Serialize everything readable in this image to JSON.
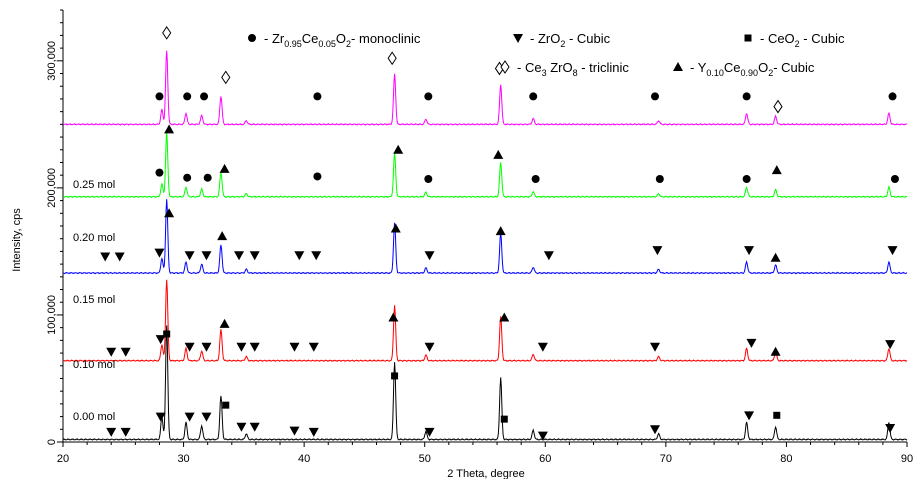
{
  "chart_data": {
    "type": "line",
    "xlabel": "2 Theta, degree",
    "ylabel": "Intensity, cps",
    "xlim": [
      20,
      90
    ],
    "ylim": [
      0,
      340000
    ],
    "x_ticks": [
      20,
      30,
      40,
      50,
      60,
      70,
      80,
      90
    ],
    "y_ticks": [
      0,
      100000,
      200000,
      300000
    ],
    "y_tick_labels": [
      "0",
      "100,000",
      "200,000",
      "300,000"
    ],
    "grid": false,
    "legend": [
      {
        "marker": "circle",
        "parts": [
          [
            "- Zr",
            ""
          ],
          [
            "0.95",
            "sub"
          ],
          [
            "Ce",
            ""
          ],
          [
            "0.05",
            "sub"
          ],
          [
            "O",
            ""
          ],
          [
            "2",
            "sub"
          ],
          [
            "- monoclinic",
            ""
          ]
        ]
      },
      {
        "marker": "triangle-down",
        "parts": [
          [
            "- ZrO",
            ""
          ],
          [
            "2",
            "sub"
          ],
          [
            " - Cubic",
            ""
          ]
        ]
      },
      {
        "marker": "square",
        "parts": [
          [
            "- CeO",
            ""
          ],
          [
            "2",
            "sub"
          ],
          [
            " - Cubic",
            ""
          ]
        ]
      },
      {
        "marker": "diamond",
        "parts": [
          [
            "- Ce",
            ""
          ],
          [
            "3",
            "sub"
          ],
          [
            " ZrO",
            ""
          ],
          [
            "8",
            "sub"
          ],
          [
            " - triclinic",
            ""
          ]
        ]
      },
      {
        "marker": "triangle-up",
        "parts": [
          [
            "- Y",
            ""
          ],
          [
            "0.10",
            "sub"
          ],
          [
            "Ce",
            ""
          ],
          [
            "0.90",
            "sub"
          ],
          [
            "O",
            ""
          ],
          [
            "2",
            "sub"
          ],
          [
            "- Cubic",
            ""
          ]
        ]
      }
    ],
    "peaks": [
      {
        "x": 28.6,
        "h": 1.0
      },
      {
        "x": 28.2,
        "h": 0.2
      },
      {
        "x": 30.2,
        "h": 0.15
      },
      {
        "x": 31.5,
        "h": 0.12
      },
      {
        "x": 33.1,
        "h": 0.38
      },
      {
        "x": 35.2,
        "h": 0.05
      },
      {
        "x": 47.5,
        "h": 0.68
      },
      {
        "x": 50.1,
        "h": 0.07
      },
      {
        "x": 56.3,
        "h": 0.54
      },
      {
        "x": 59.0,
        "h": 0.08
      },
      {
        "x": 69.4,
        "h": 0.05
      },
      {
        "x": 76.7,
        "h": 0.15
      },
      {
        "x": 79.1,
        "h": 0.11
      },
      {
        "x": 88.5,
        "h": 0.15
      }
    ],
    "series": [
      {
        "name": "0.00 mol",
        "color": "#000000",
        "baseline": 2000,
        "peak_scale": 90000,
        "markers": [
          {
            "x": 28.6,
            "y": 85000,
            "sym": "square"
          },
          {
            "x": 47.5,
            "y": 52000,
            "sym": "square"
          },
          {
            "x": 56.6,
            "y": 18000,
            "sym": "square"
          },
          {
            "x": 33.5,
            "y": 29000,
            "sym": "square"
          },
          {
            "x": 79.2,
            "y": 21000,
            "sym": "square"
          },
          {
            "x": 24.0,
            "y": 8000,
            "sym": "tdown"
          },
          {
            "x": 25.2,
            "y": 8000,
            "sym": "tdown"
          },
          {
            "x": 28.1,
            "y": 20000,
            "sym": "tdown"
          },
          {
            "x": 30.5,
            "y": 20000,
            "sym": "tdown"
          },
          {
            "x": 31.9,
            "y": 20000,
            "sym": "tdown"
          },
          {
            "x": 34.8,
            "y": 12000,
            "sym": "tdown"
          },
          {
            "x": 35.9,
            "y": 12000,
            "sym": "tdown"
          },
          {
            "x": 39.2,
            "y": 9000,
            "sym": "tdown"
          },
          {
            "x": 40.8,
            "y": 8000,
            "sym": "tdown"
          },
          {
            "x": 50.4,
            "y": 8000,
            "sym": "tdown"
          },
          {
            "x": 59.8,
            "y": 5000,
            "sym": "tdown"
          },
          {
            "x": 69.1,
            "y": 10000,
            "sym": "tdown"
          },
          {
            "x": 76.9,
            "y": 21000,
            "sym": "tdown"
          },
          {
            "x": 88.6,
            "y": 11000,
            "sym": "tdown"
          }
        ]
      },
      {
        "name": "0.10 mol",
        "color": "#ff0000",
        "baseline": 64000,
        "peak_scale": 64000,
        "markers": [
          {
            "x": 47.4,
            "y": 98000,
            "sym": "tup"
          },
          {
            "x": 56.6,
            "y": 98000,
            "sym": "tup"
          },
          {
            "x": 33.4,
            "y": 93000,
            "sym": "tup"
          },
          {
            "x": 24.0,
            "y": 71000,
            "sym": "tdown"
          },
          {
            "x": 25.2,
            "y": 71000,
            "sym": "tdown"
          },
          {
            "x": 28.1,
            "y": 81000,
            "sym": "tdown"
          },
          {
            "x": 30.5,
            "y": 75000,
            "sym": "tdown"
          },
          {
            "x": 31.9,
            "y": 75000,
            "sym": "tdown"
          },
          {
            "x": 34.8,
            "y": 75000,
            "sym": "tdown"
          },
          {
            "x": 35.9,
            "y": 75000,
            "sym": "tdown"
          },
          {
            "x": 39.2,
            "y": 75000,
            "sym": "tdown"
          },
          {
            "x": 40.8,
            "y": 75000,
            "sym": "tdown"
          },
          {
            "x": 50.4,
            "y": 75000,
            "sym": "tdown"
          },
          {
            "x": 59.8,
            "y": 75000,
            "sym": "tdown"
          },
          {
            "x": 69.1,
            "y": 75000,
            "sym": "tdown"
          },
          {
            "x": 77.1,
            "y": 78000,
            "sym": "tdown"
          },
          {
            "x": 79.1,
            "y": 71000,
            "sym": "tup"
          },
          {
            "x": 88.6,
            "y": 77000,
            "sym": "tdown"
          }
        ]
      },
      {
        "name": "0.15 mol",
        "color": "#0000ff",
        "baseline": 133000,
        "peak_scale": 58000,
        "markers": [
          {
            "x": 28.8,
            "y": 180000,
            "sym": "tup"
          },
          {
            "x": 33.2,
            "y": 162000,
            "sym": "tup"
          },
          {
            "x": 47.6,
            "y": 168000,
            "sym": "tup"
          },
          {
            "x": 56.3,
            "y": 166000,
            "sym": "tup"
          },
          {
            "x": 79.1,
            "y": 145000,
            "sym": "tup"
          },
          {
            "x": 23.5,
            "y": 146000,
            "sym": "tdown"
          },
          {
            "x": 24.7,
            "y": 146000,
            "sym": "tdown"
          },
          {
            "x": 28.0,
            "y": 149000,
            "sym": "tdown"
          },
          {
            "x": 30.5,
            "y": 147000,
            "sym": "tdown"
          },
          {
            "x": 31.9,
            "y": 147000,
            "sym": "tdown"
          },
          {
            "x": 34.6,
            "y": 147000,
            "sym": "tdown"
          },
          {
            "x": 35.9,
            "y": 147000,
            "sym": "tdown"
          },
          {
            "x": 39.6,
            "y": 147000,
            "sym": "tdown"
          },
          {
            "x": 41.0,
            "y": 147000,
            "sym": "tdown"
          },
          {
            "x": 50.4,
            "y": 147000,
            "sym": "tdown"
          },
          {
            "x": 60.3,
            "y": 147000,
            "sym": "tdown"
          },
          {
            "x": 69.3,
            "y": 151000,
            "sym": "tdown"
          },
          {
            "x": 76.9,
            "y": 151000,
            "sym": "tdown"
          },
          {
            "x": 88.8,
            "y": 151000,
            "sym": "tdown"
          }
        ]
      },
      {
        "name": "0.20 mol",
        "color": "#00ff00",
        "baseline": 193000,
        "peak_scale": 50000,
        "markers": [
          {
            "x": 28.8,
            "y": 246000,
            "sym": "tup"
          },
          {
            "x": 33.4,
            "y": 215000,
            "sym": "tup"
          },
          {
            "x": 47.8,
            "y": 230000,
            "sym": "tup"
          },
          {
            "x": 56.1,
            "y": 226000,
            "sym": "tup"
          },
          {
            "x": 79.2,
            "y": 214000,
            "sym": "tup"
          },
          {
            "x": 28.0,
            "y": 212000,
            "sym": "circle"
          },
          {
            "x": 30.3,
            "y": 208000,
            "sym": "circle"
          },
          {
            "x": 32.0,
            "y": 208000,
            "sym": "circle"
          },
          {
            "x": 41.1,
            "y": 209000,
            "sym": "circle"
          },
          {
            "x": 50.3,
            "y": 207000,
            "sym": "circle"
          },
          {
            "x": 59.2,
            "y": 207000,
            "sym": "circle"
          },
          {
            "x": 69.5,
            "y": 207000,
            "sym": "circle"
          },
          {
            "x": 76.7,
            "y": 207000,
            "sym": "circle"
          },
          {
            "x": 89.0,
            "y": 207000,
            "sym": "circle"
          }
        ]
      },
      {
        "name": "0.25 mol",
        "color": "#ff00ff",
        "baseline": 250000,
        "peak_scale": 58000,
        "markers": [
          {
            "x": 28.6,
            "y": 322000,
            "sym": "diamond"
          },
          {
            "x": 33.5,
            "y": 287000,
            "sym": "diamond"
          },
          {
            "x": 47.3,
            "y": 302000,
            "sym": "diamond"
          },
          {
            "x": 56.2,
            "y": 294000,
            "sym": "diamond"
          },
          {
            "x": 79.3,
            "y": 264000,
            "sym": "diamond"
          },
          {
            "x": 28.0,
            "y": 272000,
            "sym": "circle"
          },
          {
            "x": 30.3,
            "y": 272000,
            "sym": "circle"
          },
          {
            "x": 31.7,
            "y": 272000,
            "sym": "circle"
          },
          {
            "x": 41.1,
            "y": 272000,
            "sym": "circle"
          },
          {
            "x": 50.3,
            "y": 272000,
            "sym": "circle"
          },
          {
            "x": 59.0,
            "y": 272000,
            "sym": "circle"
          },
          {
            "x": 69.1,
            "y": 272000,
            "sym": "circle"
          },
          {
            "x": 76.7,
            "y": 272000,
            "sym": "circle"
          },
          {
            "x": 88.8,
            "y": 272000,
            "sym": "circle"
          }
        ]
      }
    ]
  }
}
